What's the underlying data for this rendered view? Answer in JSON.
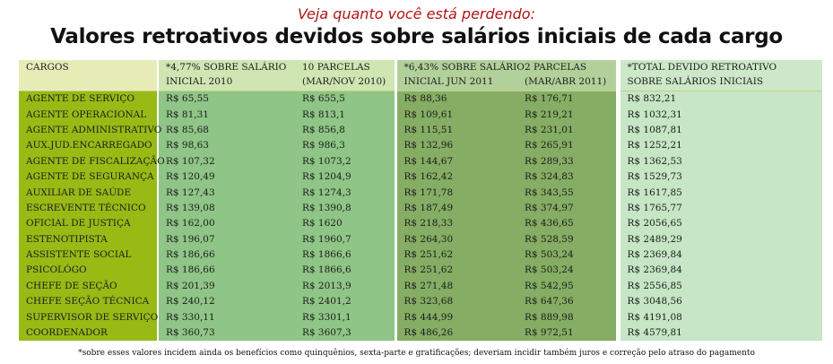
{
  "subtitle": "Veja quanto você está perdendo:",
  "title": "Valores retroativos devidos sobre salários iniciais de cada cargo",
  "table": {
    "headers": {
      "cargos": "CARGOS",
      "inicial_2010_l1": "*4,77% SOBRE SALÁRIO",
      "inicial_2010_l2": "INICIAL 2010",
      "parcelas_2010_l1": "10 PARCELAS",
      "parcelas_2010_l2": "(MAR/NOV 2010)",
      "inicial_2011_l1": "*6,43% SOBRE SALÁRIO",
      "inicial_2011_l2": "INICIAL JUN 2011",
      "parcelas_2011_l1": "2 PARCELAS",
      "parcelas_2011_l2": "(MAR/ABR 2011)",
      "total_l1": "*TOTAL DEVIDO RETROATIVO",
      "total_l2": "SOBRE SALÁRIOS INICIAIS"
    },
    "rows": [
      [
        "AGENTE DE SERVIÇO",
        "R$ 65,55",
        "R$ 655,5",
        "R$ 88,36",
        "R$ 176,71",
        "R$ 832,21"
      ],
      [
        "AGENTE OPERACIONAL",
        "R$ 81,31",
        "R$ 813,1",
        "R$ 109,61",
        "R$ 219,21",
        "R$ 1032,31"
      ],
      [
        "AGENTE ADMINISTRATIVO",
        "R$ 85,68",
        "R$ 856,8",
        "R$ 115,51",
        "R$ 231,01",
        "R$ 1087,81"
      ],
      [
        "AUX.JUD.ENCARREGADO",
        "R$ 98,63",
        "R$ 986,3",
        "R$ 132,96",
        "R$ 265,91",
        "R$ 1252,21"
      ],
      [
        "AGENTE DE FISCALIZAÇÃO",
        "R$ 107,32",
        "R$ 1073,2",
        "R$ 144,67",
        "R$ 289,33",
        "R$ 1362,53"
      ],
      [
        "AGENTE DE SEGURANÇA",
        "R$ 120,49",
        "R$ 1204,9",
        "R$ 162,42",
        "R$ 324,83",
        "R$ 1529,73"
      ],
      [
        "AUXILIAR DE SAÚDE",
        "R$ 127,43",
        "R$ 1274,3",
        "R$ 171,78",
        "R$ 343,55",
        "R$ 1617,85"
      ],
      [
        "ESCREVENTE TÉCNICO",
        "R$ 139,08",
        "R$ 1390,8",
        "R$ 187,49",
        "R$ 374,97",
        "R$ 1765,77"
      ],
      [
        "OFICIAL DE JUSTIÇA",
        "R$ 162,00",
        "R$ 1620",
        "R$ 218,33",
        "R$ 436,65",
        "R$ 2056,65"
      ],
      [
        "ESTENOTIPISTA",
        "R$ 196,07",
        "R$ 1960,7",
        "R$ 264,30",
        "R$ 528,59",
        "R$ 2489,29"
      ],
      [
        "ASSISTENTE SOCIAL",
        "R$ 186,66",
        "R$ 1866,6",
        "R$ 251,62",
        "R$ 503,24",
        "R$ 2369,84"
      ],
      [
        "PSICOLÓGO",
        "R$ 186,66",
        "R$ 1866,6",
        "R$ 251,62",
        "R$ 503,24",
        "R$ 2369,84"
      ],
      [
        "CHEFE DE SEÇÃO",
        "R$ 201,39",
        "R$ 2013,9",
        "R$ 271,48",
        "R$ 542,95",
        "R$ 2556,85"
      ],
      [
        "CHEFE SEÇÃO TÉCNICA",
        "R$ 240,12",
        "R$ 2401,2",
        "R$ 323,68",
        "R$ 647,36",
        "R$ 3048,56"
      ],
      [
        "SUPERVISOR DE SERVIÇO",
        "R$ 330,11",
        "R$ 3301,1",
        "R$ 444,99",
        "R$ 889,98",
        "R$ 4191,08"
      ],
      [
        "COORDENADOR",
        "R$ 360,73",
        "R$ 3607,3",
        "R$ 486,26",
        "R$ 972,51",
        "R$ 4579,81"
      ]
    ]
  },
  "footnote": "*sobre esses valores incidem ainda os benefícios como quinquênios, sexta-parte e gratificações; deveriam incidir também juros e correção pelo atraso do pagamento",
  "colors": {
    "subtitle": "#b01414",
    "cargo_column": "#99b915",
    "group_2010": "#8fc586",
    "group_2011": "#85ad64",
    "total_column": "#c6e6c5"
  }
}
